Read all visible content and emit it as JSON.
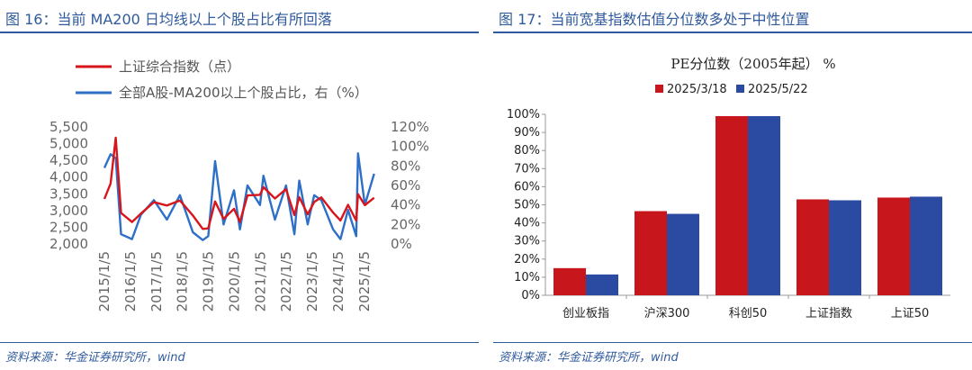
{
  "left": {
    "title": "图 16：当前 MA200 日均线以上个股占比有所回落",
    "source": "资料来源：华金证券研究所，wind"
  },
  "right": {
    "title": "图 17：当前宽基指数估值分位数多处于中性位置",
    "source": "资料来源：华金证券研究所，wind"
  },
  "chart_data": [
    {
      "type": "line",
      "title": "",
      "series": [
        {
          "name": "上证综合指数（点）",
          "axis": "left",
          "color": "#d7151b",
          "x": [
            "2015/1/5",
            "2015/4/1",
            "2015/6/12",
            "2015/8/26",
            "2016/1/28",
            "2016/6/1",
            "2016/12/1",
            "2017/6/1",
            "2017/12/1",
            "2018/6/1",
            "2018/10/18",
            "2019/1/4",
            "2019/4/8",
            "2019/8/6",
            "2019/12/31",
            "2020/3/23",
            "2020/7/7",
            "2020/12/31",
            "2021/2/18",
            "2021/7/28",
            "2021/12/31",
            "2022/4/27",
            "2022/7/4",
            "2022/10/31",
            "2023/1/31",
            "2023/5/9",
            "2023/10/23",
            "2024/2/5",
            "2024/5/20",
            "2024/9/13",
            "2024/10/8",
            "2025/1/13",
            "2025/5/22"
          ],
          "values": [
            3350,
            3810,
            5178,
            2927,
            2656,
            2910,
            3250,
            3150,
            3300,
            2850,
            2449,
            2465,
            3270,
            2750,
            3050,
            2660,
            3450,
            3470,
            3700,
            3360,
            3640,
            2863,
            3400,
            2885,
            3255,
            3395,
            2940,
            2702,
            3170,
            2704,
            3489,
            3160,
            3380
          ]
        },
        {
          "name": "全部A股-MA200以上个股占比，右（%）",
          "axis": "right",
          "color": "#2e6fc7",
          "x": [
            "2015/1/5",
            "2015/4/1",
            "2015/6/12",
            "2015/8/26",
            "2016/1/28",
            "2016/6/1",
            "2016/12/1",
            "2017/6/1",
            "2017/12/1",
            "2018/6/1",
            "2018/10/18",
            "2019/1/4",
            "2019/4/8",
            "2019/8/6",
            "2019/12/31",
            "2020/3/23",
            "2020/7/7",
            "2020/12/31",
            "2021/2/18",
            "2021/7/28",
            "2021/12/31",
            "2022/4/27",
            "2022/7/4",
            "2022/10/31",
            "2023/1/31",
            "2023/5/9",
            "2023/10/23",
            "2024/2/5",
            "2024/5/20",
            "2024/9/13",
            "2024/10/8",
            "2025/1/13",
            "2025/5/22"
          ],
          "values": [
            78,
            92,
            88,
            10,
            5,
            30,
            45,
            25,
            50,
            12,
            4,
            8,
            85,
            20,
            55,
            15,
            60,
            40,
            70,
            25,
            60,
            10,
            65,
            20,
            50,
            45,
            15,
            5,
            35,
            8,
            93,
            40,
            72
          ]
        }
      ],
      "axes": {
        "left": {
          "ylim": [
            2000,
            5500
          ],
          "ticks": [
            "2,000",
            "2,500",
            "3,000",
            "3,500",
            "4,000",
            "4,500",
            "5,000",
            "5,500"
          ]
        },
        "right": {
          "ylim": [
            0,
            120
          ],
          "ticks": [
            "0%",
            "20%",
            "40%",
            "60%",
            "80%",
            "100%",
            "120%"
          ]
        },
        "x_ticks": [
          "2015/1/5",
          "2016/1/5",
          "2017/1/5",
          "2018/1/5",
          "2019/1/5",
          "2020/1/5",
          "2021/1/5",
          "2022/1/5",
          "2023/1/5",
          "2024/1/5",
          "2025/1/5"
        ]
      },
      "legend": "top-left",
      "grid": false
    },
    {
      "type": "bar",
      "title": "PE分位数（2005年起） %",
      "categories": [
        "创业板指",
        "沪深300",
        "科创50",
        "上证指数",
        "上证50"
      ],
      "series": [
        {
          "name": "2025/3/18",
          "color": "#c8161d",
          "values": [
            15,
            46.5,
            99,
            53,
            54
          ]
        },
        {
          "name": "2025/5/22",
          "color": "#2b4aa1",
          "values": [
            11.5,
            45,
            99,
            52.5,
            54.5
          ]
        }
      ],
      "ylim": [
        0,
        100
      ],
      "y_ticks": [
        "0%",
        "10%",
        "20%",
        "30%",
        "40%",
        "50%",
        "60%",
        "70%",
        "80%",
        "90%",
        "100%"
      ],
      "legend": "top",
      "grid": false
    }
  ]
}
